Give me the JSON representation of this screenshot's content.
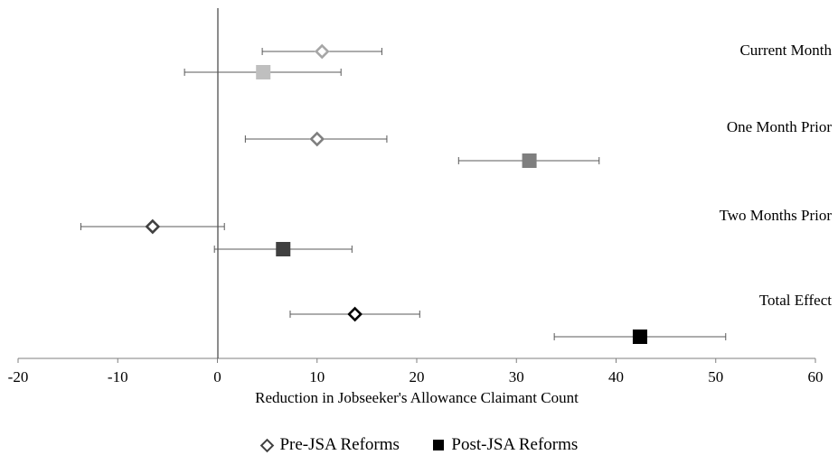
{
  "chart_data": {
    "type": "scatter",
    "subtype": "coefficient plot with horizontal error bars",
    "title": "",
    "xlabel": "Reduction in Jobseeker's Allowance Claimant Count",
    "ylabel": "",
    "xlim": [
      -20,
      60
    ],
    "xticks": [
      -20,
      -10,
      0,
      10,
      20,
      30,
      40,
      50,
      60
    ],
    "xtick_labels": [
      "-20",
      "-10",
      "0",
      "10",
      "20",
      "30",
      "40",
      "50",
      "60"
    ],
    "grid": false,
    "legend_position": "bottom",
    "categories": [
      "Current Month",
      "One Month Prior",
      "Two Months Prior",
      "Total Effect"
    ],
    "series": [
      {
        "name": "Pre-JSA Reforms",
        "marker": "diamond-open",
        "colors": [
          "#a6a6a6",
          "#7f7f7f",
          "#404040",
          "#000000"
        ],
        "points": [
          {
            "category": "Current Month",
            "value": 10.5,
            "lower": 4.5,
            "upper": 16.5
          },
          {
            "category": "One Month Prior",
            "value": 10.0,
            "lower": 2.8,
            "upper": 17.0
          },
          {
            "category": "Two Months Prior",
            "value": -6.5,
            "lower": -13.7,
            "upper": 0.7
          },
          {
            "category": "Total Effect",
            "value": 13.8,
            "lower": 7.3,
            "upper": 20.3
          }
        ]
      },
      {
        "name": "Post-JSA  Reforms",
        "marker": "square-filled",
        "colors": [
          "#bfbfbf",
          "#7f7f7f",
          "#404040",
          "#000000"
        ],
        "points": [
          {
            "category": "Current Month",
            "value": 4.6,
            "lower": -3.3,
            "upper": 12.4
          },
          {
            "category": "One Month Prior",
            "value": 31.3,
            "lower": 24.2,
            "upper": 38.3
          },
          {
            "category": "Two Months Prior",
            "value": 6.6,
            "lower": -0.3,
            "upper": 13.5
          },
          {
            "category": "Total Effect",
            "value": 42.4,
            "lower": 33.8,
            "upper": 51.0
          }
        ]
      }
    ]
  },
  "legend": {
    "pre_label": "Pre-JSA Reforms",
    "post_label": "Post-JSA  Reforms",
    "pre_icon": "open-diamond-icon",
    "post_icon": "filled-square-icon"
  }
}
